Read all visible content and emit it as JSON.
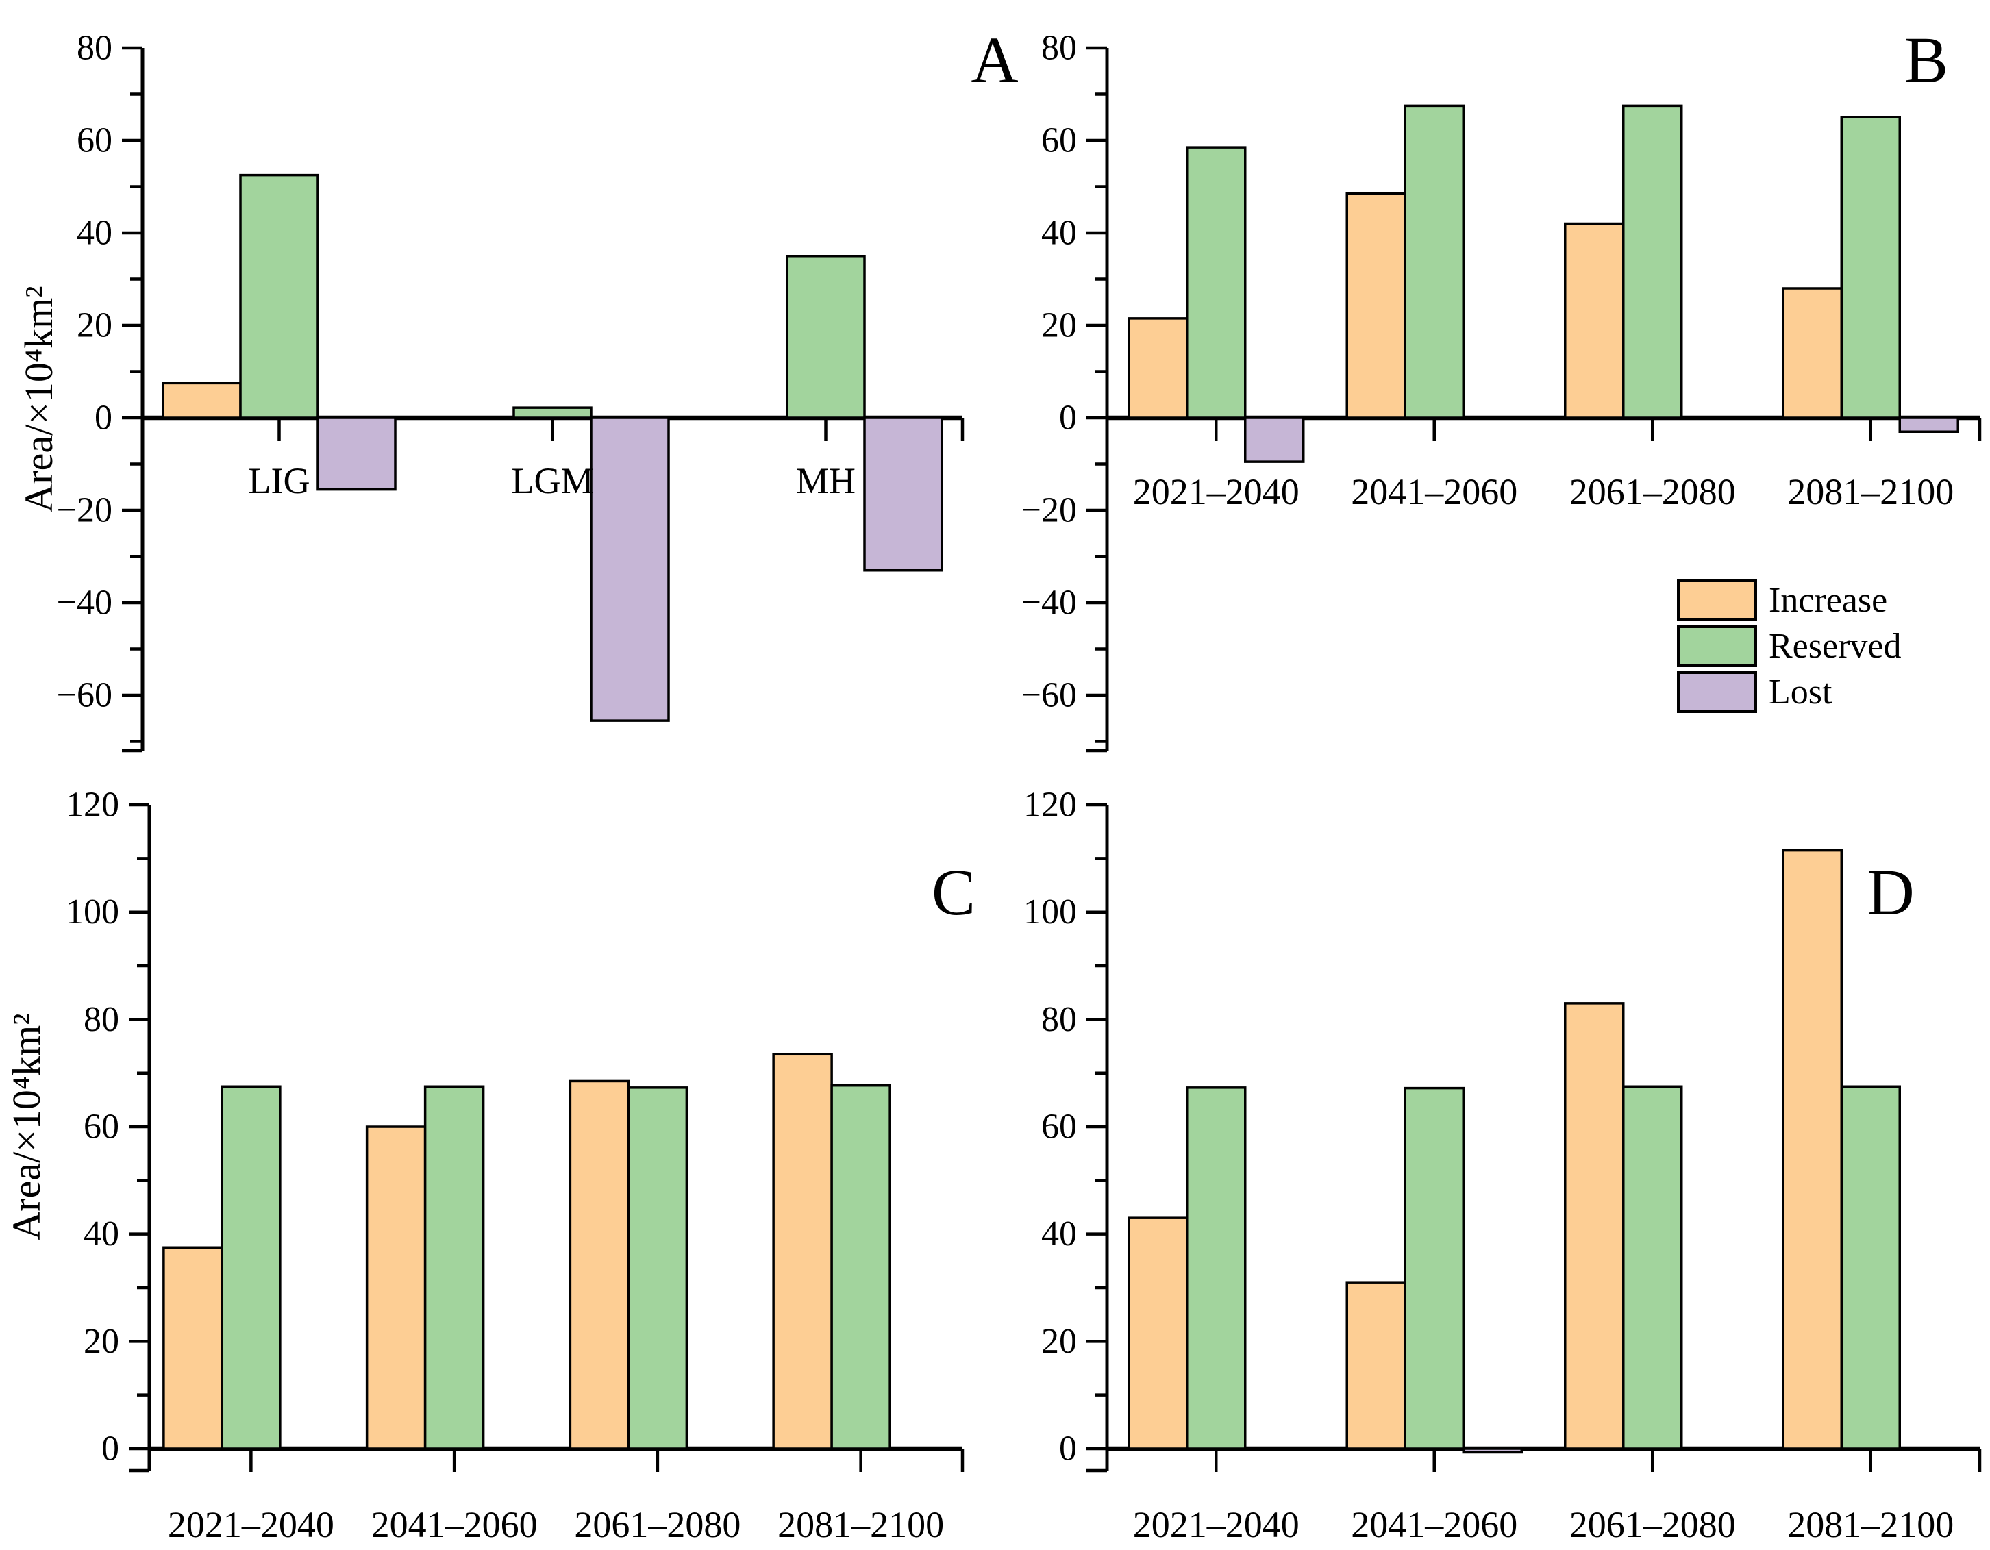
{
  "figure": {
    "background": "#ffffff",
    "y_axis_unit_label": "Area/×10⁴km²"
  },
  "legend": {
    "position": "right-of-panel-B-below-zero",
    "items": [
      {
        "label": "Increase",
        "color": "#FDCE94"
      },
      {
        "label": "Reserved",
        "color": "#A2D49D"
      },
      {
        "label": "Lost",
        "color": "#C6B6D6"
      }
    ]
  },
  "chart_data": [
    {
      "type": "bar",
      "panel_letter": "A",
      "title": "",
      "xlabel": "",
      "ylabel": "Area/×10⁴km²",
      "ylim": [
        -72,
        80
      ],
      "grid": false,
      "categories": [
        "LIG",
        "LGM",
        "MH"
      ],
      "y_major_ticks": [
        80,
        60,
        40,
        20,
        0,
        -20,
        -40,
        -60
      ],
      "y_tick_labels": [
        "80",
        "60",
        "40",
        "20",
        "0",
        "−20",
        "−40",
        "−60"
      ],
      "minor_tick_step": 10,
      "series": [
        {
          "name": "Increase",
          "values": [
            7.5,
            0,
            0
          ]
        },
        {
          "name": "Reserved",
          "values": [
            52.5,
            2.2,
            35
          ]
        },
        {
          "name": "Lost",
          "values": [
            -15.5,
            -65.5,
            -33
          ]
        }
      ]
    },
    {
      "type": "bar",
      "panel_letter": "B",
      "title": "",
      "xlabel": "",
      "ylabel": "",
      "ylim": [
        -72,
        80
      ],
      "grid": false,
      "categories": [
        "2021–2040",
        "2041–2060",
        "2061–2080",
        "2081–2100"
      ],
      "y_major_ticks": [
        80,
        60,
        40,
        20,
        0,
        -20,
        -40,
        -60
      ],
      "y_tick_labels": [
        "80",
        "60",
        "40",
        "20",
        "0",
        "−20",
        "−40",
        "−60"
      ],
      "minor_tick_step": 10,
      "series": [
        {
          "name": "Increase",
          "values": [
            21.5,
            48.5,
            42,
            28
          ]
        },
        {
          "name": "Reserved",
          "values": [
            58.5,
            67.5,
            67.5,
            65
          ]
        },
        {
          "name": "Lost",
          "values": [
            -9.5,
            0,
            0,
            -3
          ]
        }
      ]
    },
    {
      "type": "bar",
      "panel_letter": "C",
      "title": "",
      "xlabel": "",
      "ylabel": "Area/×10⁴km²",
      "ylim": [
        0,
        120
      ],
      "grid": false,
      "categories": [
        "2021–2040",
        "2041–2060",
        "2061–2080",
        "2081–2100"
      ],
      "y_major_ticks": [
        120,
        100,
        80,
        60,
        40,
        20,
        0
      ],
      "y_tick_labels": [
        "120",
        "100",
        "80",
        "60",
        "40",
        "20",
        "0"
      ],
      "minor_tick_step": 10,
      "series": [
        {
          "name": "Increase",
          "values": [
            37.5,
            60,
            68.5,
            73.5
          ]
        },
        {
          "name": "Reserved",
          "values": [
            67.5,
            67.5,
            67.3,
            67.7
          ]
        },
        {
          "name": "Lost",
          "values": [
            0,
            0,
            0,
            0
          ]
        }
      ]
    },
    {
      "type": "bar",
      "panel_letter": "D",
      "title": "",
      "xlabel": "",
      "ylabel": "",
      "ylim": [
        0,
        120
      ],
      "grid": false,
      "categories": [
        "2021–2040",
        "2041–2060",
        "2061–2080",
        "2081–2100"
      ],
      "y_major_ticks": [
        120,
        100,
        80,
        60,
        40,
        20,
        0
      ],
      "y_tick_labels": [
        "120",
        "100",
        "80",
        "60",
        "40",
        "20",
        "0"
      ],
      "minor_tick_step": 10,
      "series": [
        {
          "name": "Increase",
          "values": [
            43,
            31,
            83,
            111.5
          ]
        },
        {
          "name": "Reserved",
          "values": [
            67.3,
            67.2,
            67.5,
            67.5
          ]
        },
        {
          "name": "Lost",
          "values": [
            0,
            -0.7,
            0,
            0
          ]
        }
      ]
    }
  ]
}
